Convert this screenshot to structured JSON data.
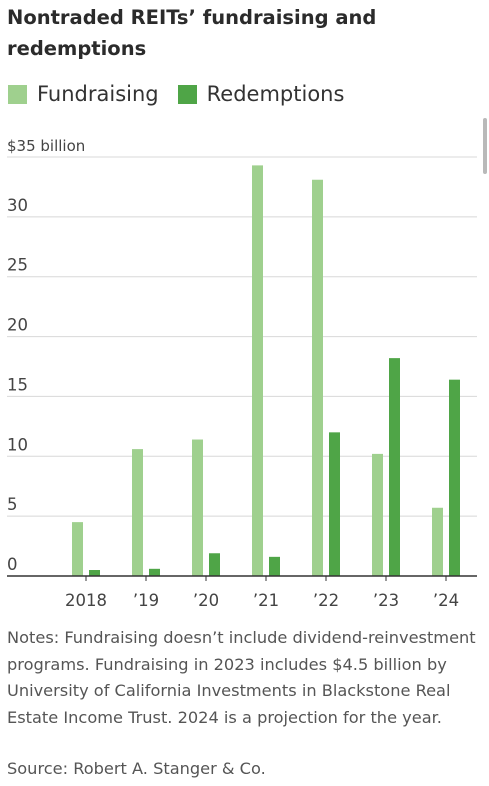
{
  "title": "Nontraded REITs’ fundraising and redemptions",
  "colors": {
    "fundraising": "#9fd08e",
    "redemptions": "#4fa547",
    "grid": "#d8d8d8",
    "axis": "#333333"
  },
  "legend": [
    {
      "name": "Fundraising",
      "color": "#9fd08e"
    },
    {
      "name": "Redemptions",
      "color": "#4fa547"
    }
  ],
  "chart_data": {
    "type": "bar",
    "categories": [
      "2018",
      "’19",
      "’20",
      "’21",
      "’22",
      "’23",
      "’24"
    ],
    "series": [
      {
        "name": "Fundraising",
        "values": [
          4.5,
          10.6,
          11.4,
          34.3,
          33.1,
          10.2,
          5.7
        ]
      },
      {
        "name": "Redemptions",
        "values": [
          0.5,
          0.6,
          1.9,
          1.6,
          12.0,
          18.2,
          16.4
        ]
      }
    ],
    "yticks": [
      0,
      5,
      10,
      15,
      20,
      25,
      30,
      35
    ],
    "ytick_labels": [
      "0",
      "5",
      "10",
      "15",
      "20",
      "25",
      "30",
      "$35 billion"
    ],
    "ylim": [
      0,
      35
    ],
    "grid": true
  },
  "notes": "Notes: Fundraising doesn’t include dividend-reinvestment programs. Fundraising in 2023 includes $4.5 billion by University of California Investments in Blackstone Real Estate Income Trust. 2024 is a projection for the year.",
  "source": "Source: Robert A. Stanger & Co."
}
